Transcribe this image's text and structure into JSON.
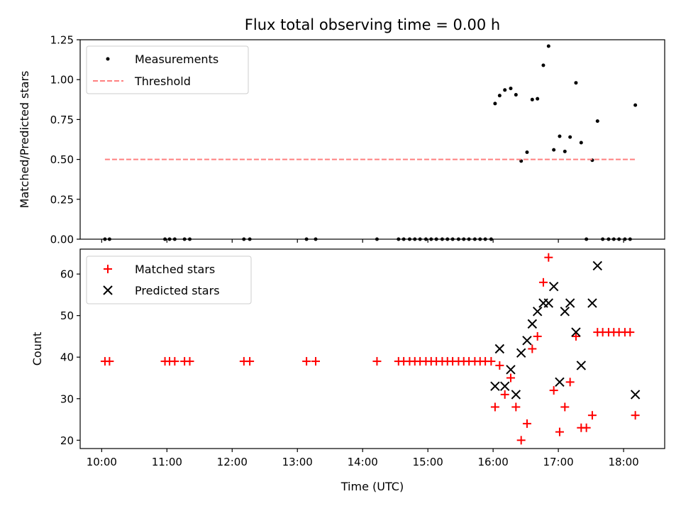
{
  "chart_data": [
    {
      "type": "scatter",
      "title": "Flux total observing time = 0.00 h",
      "xlabel": "",
      "ylabel": "Matched/Predicted stars",
      "xlim": [
        9.67,
        18.63
      ],
      "ylim": [
        0,
        1.25
      ],
      "yticks": [
        "0.00",
        "0.25",
        "0.50",
        "0.75",
        "1.00",
        "1.25"
      ],
      "xticks": [
        10,
        11,
        12,
        13,
        14,
        15,
        16,
        17,
        18
      ],
      "grid": false,
      "legend": "top-left",
      "series": [
        {
          "name": "Measurements",
          "kind": "scatter",
          "marker": "dot",
          "color": "#000000",
          "points": [
            [
              10.05,
              0
            ],
            [
              10.12,
              0
            ],
            [
              10.97,
              0
            ],
            [
              11.04,
              0
            ],
            [
              11.12,
              0
            ],
            [
              11.27,
              0
            ],
            [
              11.35,
              0
            ],
            [
              12.18,
              0
            ],
            [
              12.27,
              0
            ],
            [
              13.14,
              0
            ],
            [
              13.28,
              0
            ],
            [
              14.22,
              0
            ],
            [
              14.55,
              0
            ],
            [
              14.63,
              0
            ],
            [
              14.72,
              0
            ],
            [
              14.8,
              0
            ],
            [
              14.88,
              0
            ],
            [
              14.97,
              0
            ],
            [
              15.05,
              0
            ],
            [
              15.13,
              0
            ],
            [
              15.22,
              0
            ],
            [
              15.3,
              0
            ],
            [
              15.38,
              0
            ],
            [
              15.47,
              0
            ],
            [
              15.55,
              0
            ],
            [
              15.63,
              0
            ],
            [
              15.72,
              0
            ],
            [
              15.8,
              0
            ],
            [
              15.88,
              0
            ],
            [
              15.97,
              0
            ],
            [
              16.03,
              0.85
            ],
            [
              16.1,
              0.9
            ],
            [
              16.18,
              0.935
            ],
            [
              16.27,
              0.945
            ],
            [
              16.35,
              0.905
            ],
            [
              16.43,
              0.49
            ],
            [
              16.52,
              0.545
            ],
            [
              16.6,
              0.875
            ],
            [
              16.68,
              0.88
            ],
            [
              16.77,
              1.09
            ],
            [
              16.85,
              1.21
            ],
            [
              16.93,
              0.56
            ],
            [
              17.02,
              0.645
            ],
            [
              17.1,
              0.55
            ],
            [
              17.18,
              0.64
            ],
            [
              17.27,
              0.98
            ],
            [
              17.35,
              0.605
            ],
            [
              17.43,
              0
            ],
            [
              17.52,
              0.495
            ],
            [
              17.6,
              0.74
            ],
            [
              17.68,
              0
            ],
            [
              17.77,
              0
            ],
            [
              17.85,
              0
            ],
            [
              17.93,
              0
            ],
            [
              18.02,
              0
            ],
            [
              18.1,
              0
            ],
            [
              18.18,
              0.84
            ]
          ]
        },
        {
          "name": "Threshold",
          "kind": "line",
          "style": "dashed",
          "color": "#ff8080",
          "points": [
            [
              10.05,
              0.5
            ],
            [
              18.18,
              0.5
            ]
          ]
        }
      ]
    },
    {
      "type": "scatter",
      "title": "",
      "xlabel": "Time (UTC)",
      "ylabel": "Count",
      "xlim": [
        9.67,
        18.63
      ],
      "ylim": [
        18,
        66
      ],
      "yticks": [
        "20",
        "30",
        "40",
        "50",
        "60"
      ],
      "xticks": [
        "10:00",
        "11:00",
        "12:00",
        "13:00",
        "14:00",
        "15:00",
        "16:00",
        "17:00",
        "18:00"
      ],
      "grid": false,
      "legend": "top-left",
      "series": [
        {
          "name": "Matched stars",
          "kind": "scatter",
          "marker": "plus",
          "color": "#ff0000",
          "points": [
            [
              10.05,
              39
            ],
            [
              10.12,
              39
            ],
            [
              10.97,
              39
            ],
            [
              11.04,
              39
            ],
            [
              11.12,
              39
            ],
            [
              11.27,
              39
            ],
            [
              11.35,
              39
            ],
            [
              12.18,
              39
            ],
            [
              12.27,
              39
            ],
            [
              13.14,
              39
            ],
            [
              13.28,
              39
            ],
            [
              14.22,
              39
            ],
            [
              14.55,
              39
            ],
            [
              14.63,
              39
            ],
            [
              14.72,
              39
            ],
            [
              14.8,
              39
            ],
            [
              14.88,
              39
            ],
            [
              14.97,
              39
            ],
            [
              15.05,
              39
            ],
            [
              15.13,
              39
            ],
            [
              15.22,
              39
            ],
            [
              15.3,
              39
            ],
            [
              15.38,
              39
            ],
            [
              15.47,
              39
            ],
            [
              15.55,
              39
            ],
            [
              15.63,
              39
            ],
            [
              15.72,
              39
            ],
            [
              15.8,
              39
            ],
            [
              15.88,
              39
            ],
            [
              15.97,
              39
            ],
            [
              16.03,
              28
            ],
            [
              16.1,
              38
            ],
            [
              16.18,
              31
            ],
            [
              16.27,
              35
            ],
            [
              16.35,
              28
            ],
            [
              16.43,
              20
            ],
            [
              16.52,
              24
            ],
            [
              16.6,
              42
            ],
            [
              16.68,
              45
            ],
            [
              16.77,
              58
            ],
            [
              16.85,
              64
            ],
            [
              16.93,
              32
            ],
            [
              17.02,
              22
            ],
            [
              17.1,
              28
            ],
            [
              17.18,
              34
            ],
            [
              17.27,
              45
            ],
            [
              17.35,
              23
            ],
            [
              17.43,
              23
            ],
            [
              17.52,
              26
            ],
            [
              17.6,
              46
            ],
            [
              17.68,
              46
            ],
            [
              17.77,
              46
            ],
            [
              17.85,
              46
            ],
            [
              17.93,
              46
            ],
            [
              18.02,
              46
            ],
            [
              18.1,
              46
            ],
            [
              18.18,
              26
            ]
          ]
        },
        {
          "name": "Predicted stars",
          "kind": "scatter",
          "marker": "x",
          "color": "#000000",
          "points": [
            [
              16.03,
              33
            ],
            [
              16.1,
              42
            ],
            [
              16.18,
              33
            ],
            [
              16.27,
              37
            ],
            [
              16.35,
              31
            ],
            [
              16.43,
              41
            ],
            [
              16.52,
              44
            ],
            [
              16.6,
              48
            ],
            [
              16.68,
              51
            ],
            [
              16.77,
              53
            ],
            [
              16.85,
              53
            ],
            [
              16.93,
              57
            ],
            [
              17.02,
              34
            ],
            [
              17.1,
              51
            ],
            [
              17.18,
              53
            ],
            [
              17.27,
              46
            ],
            [
              17.35,
              38
            ],
            [
              17.52,
              53
            ],
            [
              17.6,
              62
            ],
            [
              18.18,
              31
            ]
          ]
        }
      ]
    }
  ]
}
